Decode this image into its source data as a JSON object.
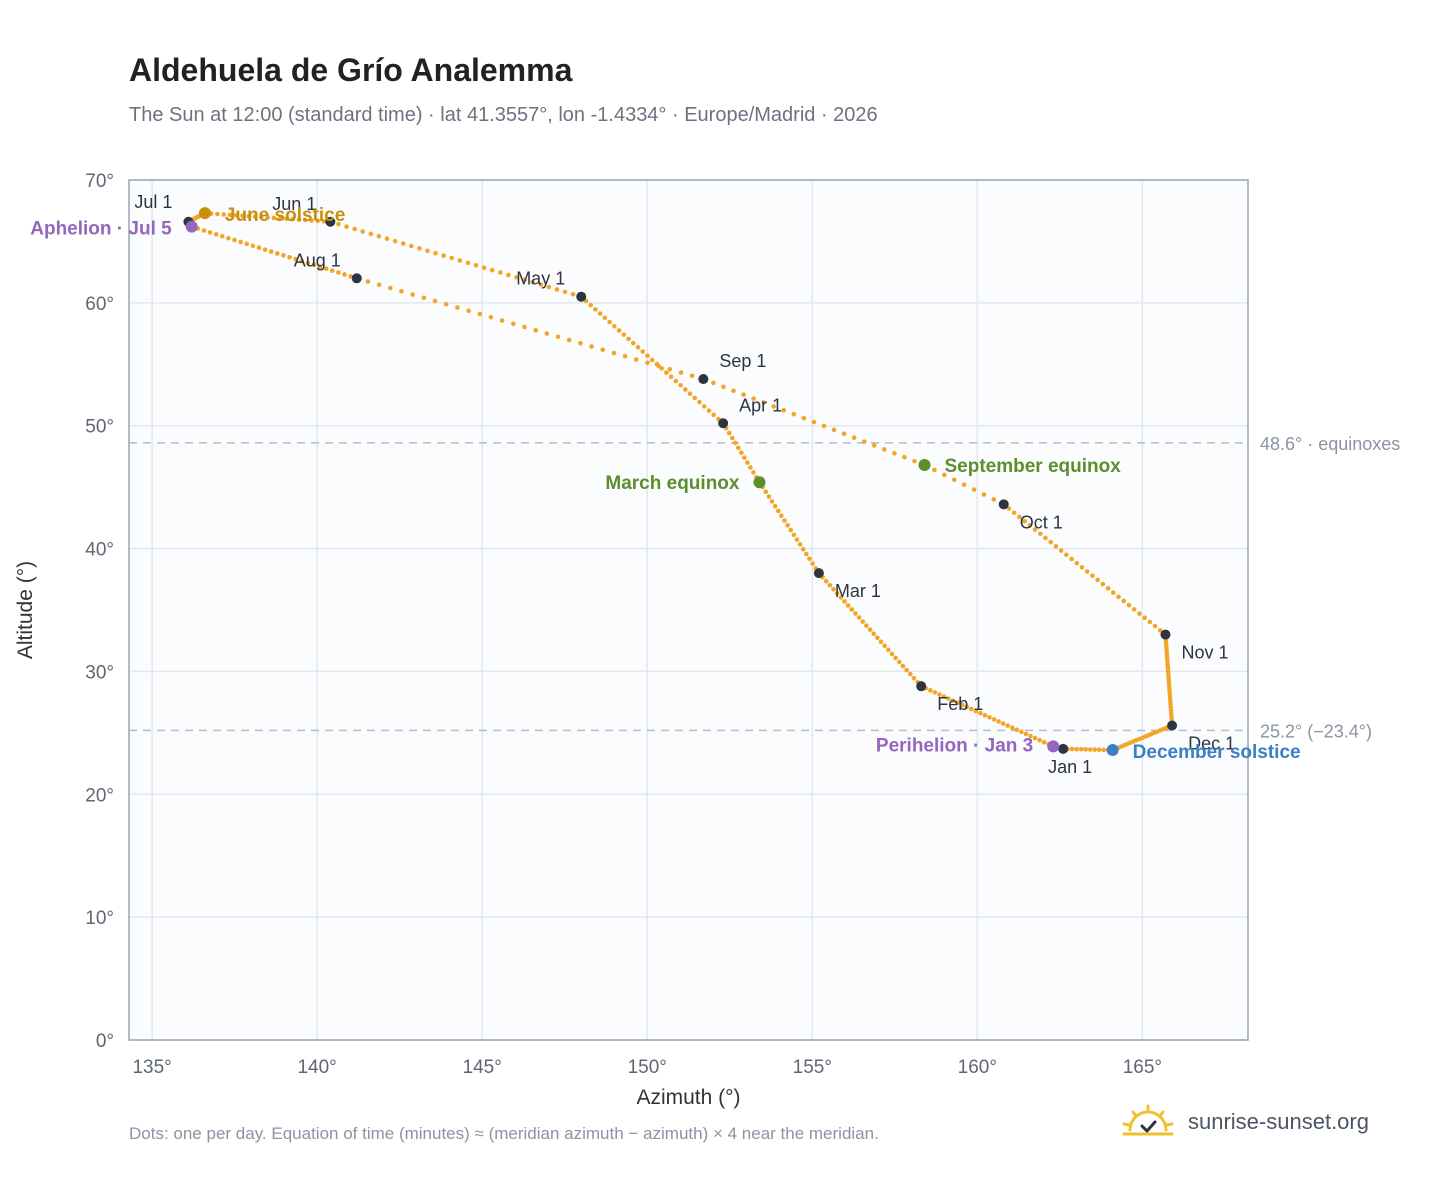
{
  "header": {
    "title": "Aldehuela de Grío Analemma",
    "subtitle": "The Sun at 12:00 (standard time) · lat 41.3557°, lon -1.4334° · Europe/Madrid · 2026"
  },
  "footer": {
    "note": "Dots: one per day. Equation of time (minutes) ≈ (meridian azimuth − azimuth) × 4 near the meridian.",
    "brand": "sunrise-sunset.org"
  },
  "colors": {
    "curve": "#f2a527",
    "month_marker": "#2d3340",
    "equinox": "#5a8f2c",
    "june_solstice": "#c8900f",
    "december_solstice": "#3b7fc4",
    "apsis": "#9466bd",
    "reference_line": "#b4bcc6",
    "plot_bg": "#fafcfe",
    "grid": "#e3e8ee"
  },
  "chart_data": {
    "type": "scatter",
    "title": "Aldehuela de Grío Analemma",
    "xlabel": "Azimuth (°)",
    "ylabel": "Altitude (°)",
    "xlim": [
      134.3,
      168.2
    ],
    "ylim": [
      0,
      70
    ],
    "xticks": [
      135,
      140,
      145,
      150,
      155,
      160,
      165
    ],
    "yticks": [
      0,
      10,
      20,
      30,
      40,
      50,
      60,
      70
    ],
    "xtick_labels": [
      "135°",
      "140°",
      "145°",
      "150°",
      "155°",
      "160°",
      "165°"
    ],
    "ytick_labels": [
      "0°",
      "10°",
      "20°",
      "30°",
      "40°",
      "50°",
      "60°",
      "70°"
    ],
    "grid": true,
    "path_keypoints": [
      {
        "doy": 1,
        "az": 162.6,
        "alt": 23.7
      },
      {
        "doy": 3,
        "az": 162.3,
        "alt": 23.9
      },
      {
        "doy": 32,
        "az": 158.3,
        "alt": 28.8
      },
      {
        "doy": 60,
        "az": 155.2,
        "alt": 38.0
      },
      {
        "doy": 79,
        "az": 153.4,
        "alt": 45.4
      },
      {
        "doy": 91,
        "az": 152.3,
        "alt": 50.2
      },
      {
        "doy": 121,
        "az": 148.0,
        "alt": 60.5
      },
      {
        "doy": 152,
        "az": 140.4,
        "alt": 66.6
      },
      {
        "doy": 172,
        "az": 136.6,
        "alt": 67.3
      },
      {
        "doy": 182,
        "az": 136.1,
        "alt": 66.6
      },
      {
        "doy": 186,
        "az": 136.2,
        "alt": 66.2
      },
      {
        "doy": 213,
        "az": 141.2,
        "alt": 62.0
      },
      {
        "doy": 244,
        "az": 151.7,
        "alt": 53.8
      },
      {
        "doy": 266,
        "az": 158.4,
        "alt": 46.8
      },
      {
        "doy": 274,
        "az": 160.8,
        "alt": 43.6
      },
      {
        "doy": 305,
        "az": 165.7,
        "alt": 33.0
      },
      {
        "doy": 335,
        "az": 165.9,
        "alt": 25.6
      },
      {
        "doy": 355,
        "az": 164.1,
        "alt": 23.6
      },
      {
        "doy": 366,
        "az": 162.6,
        "alt": 23.7
      }
    ],
    "month_markers": [
      {
        "label": "Jan 1",
        "az": 162.6,
        "alt": 23.7
      },
      {
        "label": "Feb 1",
        "az": 158.3,
        "alt": 28.8
      },
      {
        "label": "Mar 1",
        "az": 155.2,
        "alt": 38.0
      },
      {
        "label": "Apr 1",
        "az": 152.3,
        "alt": 50.2
      },
      {
        "label": "May 1",
        "az": 148.0,
        "alt": 60.5
      },
      {
        "label": "Jun 1",
        "az": 140.4,
        "alt": 66.6
      },
      {
        "label": "Jul 1",
        "az": 136.1,
        "alt": 66.6
      },
      {
        "label": "Aug 1",
        "az": 141.2,
        "alt": 62.0
      },
      {
        "label": "Sep 1",
        "az": 151.7,
        "alt": 53.8
      },
      {
        "label": "Oct 1",
        "az": 160.8,
        "alt": 43.6
      },
      {
        "label": "Nov 1",
        "az": 165.7,
        "alt": 33.0
      },
      {
        "label": "Dec 1",
        "az": 165.9,
        "alt": 25.6
      }
    ],
    "events": [
      {
        "label": "March equinox",
        "az": 153.4,
        "alt": 45.4,
        "kind": "equinox"
      },
      {
        "label": "June solstice",
        "az": 136.6,
        "alt": 67.3,
        "kind": "june_solstice"
      },
      {
        "label": "September equinox",
        "az": 158.4,
        "alt": 46.8,
        "kind": "equinox"
      },
      {
        "label": "December solstice",
        "az": 164.1,
        "alt": 23.6,
        "kind": "december_solstice"
      },
      {
        "label": "Perihelion · Jan 3",
        "az": 162.3,
        "alt": 23.9,
        "kind": "apsis"
      },
      {
        "label": "Aphelion · Jul 5",
        "az": 136.2,
        "alt": 66.2,
        "kind": "apsis"
      }
    ],
    "reference_lines": [
      {
        "alt": 48.6,
        "label": "48.6° · equinoxes"
      },
      {
        "alt": 25.2,
        "label": "25.2° (−23.4°)"
      }
    ]
  }
}
